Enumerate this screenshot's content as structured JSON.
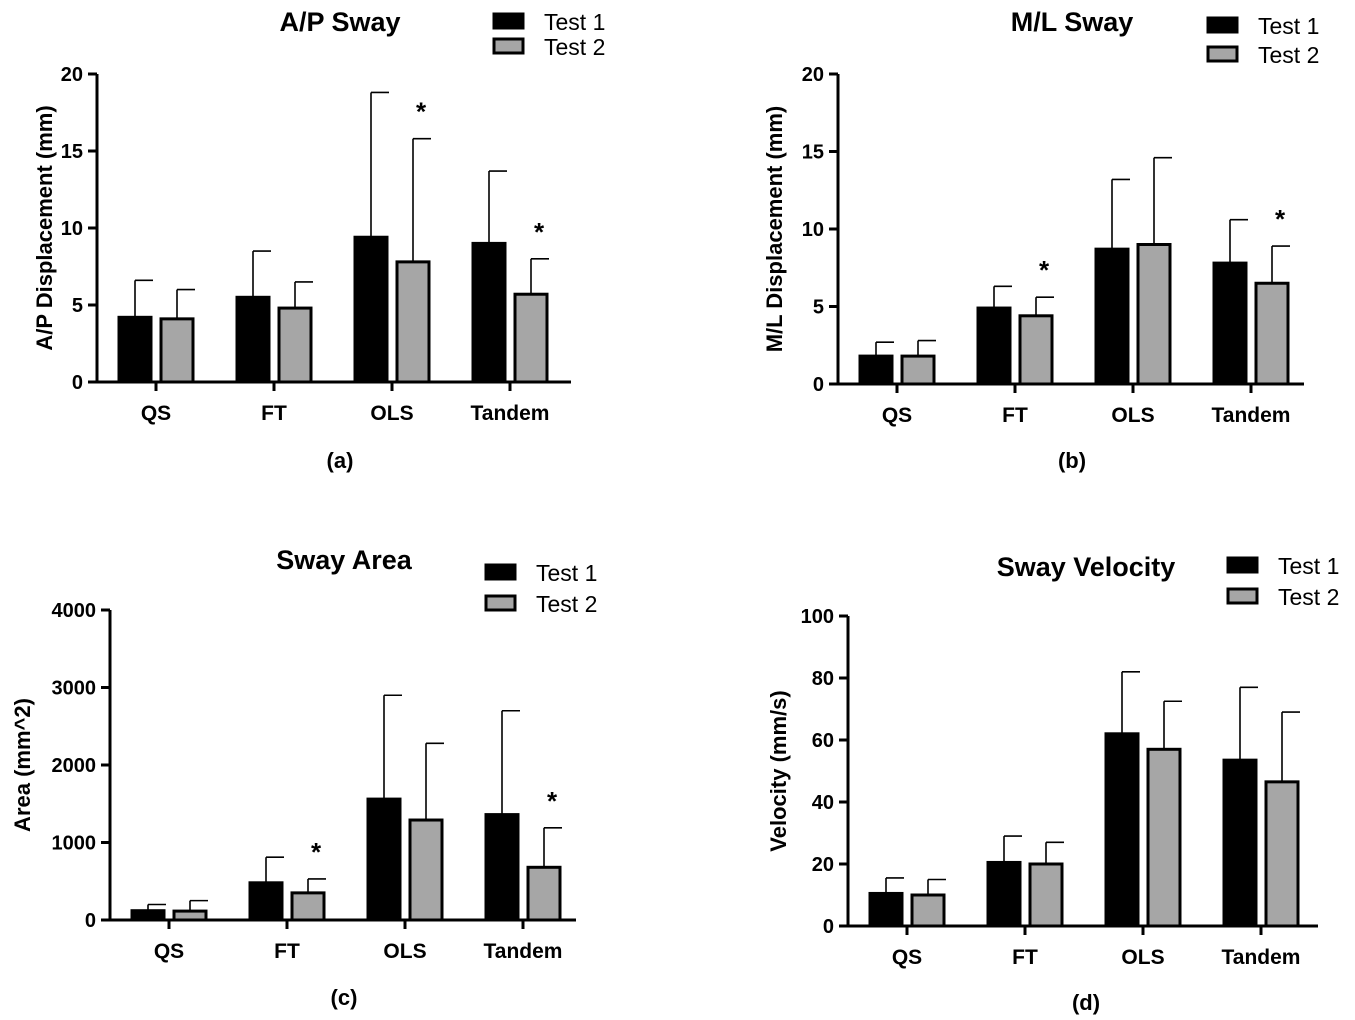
{
  "chart_data": [
    {
      "type": "bar",
      "title": "A/P Sway",
      "panel_label": "(a)",
      "ylabel": "A/P Displacement (mm)",
      "xlabel": "",
      "ylim": [
        0,
        20
      ],
      "yticks": [
        0,
        5,
        10,
        15,
        20
      ],
      "categories": [
        "QS",
        "FT",
        "OLS",
        "Tandem"
      ],
      "series": [
        {
          "name": "Test 1",
          "color": "#000000",
          "values": [
            4.2,
            5.5,
            9.4,
            9.0
          ],
          "error": [
            2.4,
            3.0,
            9.4,
            4.7
          ]
        },
        {
          "name": "Test 2",
          "color": "#a6a6a6",
          "values": [
            4.1,
            4.8,
            7.8,
            5.7
          ],
          "error": [
            1.9,
            1.7,
            8.0,
            2.3
          ]
        }
      ],
      "significance": [
        {
          "category": "OLS",
          "label": "*"
        },
        {
          "category": "Tandem",
          "label": "*"
        }
      ],
      "legend_position": "top-right"
    },
    {
      "type": "bar",
      "title": "M/L Sway",
      "panel_label": "(b)",
      "ylabel": "M/L  Displacement (mm)",
      "xlabel": "",
      "ylim": [
        0,
        20
      ],
      "yticks": [
        0,
        5,
        10,
        15,
        20
      ],
      "categories": [
        "QS",
        "FT",
        "OLS",
        "Tandem"
      ],
      "series": [
        {
          "name": "Test 1",
          "color": "#000000",
          "values": [
            1.8,
            4.9,
            8.7,
            7.8
          ],
          "error": [
            0.9,
            1.4,
            4.5,
            2.8
          ]
        },
        {
          "name": "Test 2",
          "color": "#a6a6a6",
          "values": [
            1.8,
            4.4,
            9.0,
            6.5
          ],
          "error": [
            1.0,
            1.2,
            5.6,
            2.4
          ]
        }
      ],
      "significance": [
        {
          "category": "FT",
          "label": "*"
        },
        {
          "category": "Tandem",
          "label": "*"
        }
      ],
      "legend_position": "top-right"
    },
    {
      "type": "bar",
      "title": "Sway Area",
      "panel_label": "(c)",
      "ylabel": "Area (mm^2)",
      "xlabel": "",
      "ylim": [
        0,
        4000
      ],
      "yticks": [
        0,
        1000,
        2000,
        3000,
        4000
      ],
      "categories": [
        "QS",
        "FT",
        "OLS",
        "Tandem"
      ],
      "series": [
        {
          "name": "Test 1",
          "color": "#000000",
          "values": [
            120,
            480,
            1560,
            1360
          ],
          "error": [
            80,
            330,
            1340,
            1340
          ]
        },
        {
          "name": "Test 2",
          "color": "#a6a6a6",
          "values": [
            115,
            350,
            1290,
            680
          ],
          "error": [
            135,
            180,
            990,
            510
          ]
        }
      ],
      "significance": [
        {
          "category": "FT",
          "label": "*"
        },
        {
          "category": "Tandem",
          "label": "*"
        }
      ],
      "legend_position": "top-right"
    },
    {
      "type": "bar",
      "title": "Sway Velocity",
      "panel_label": "(d)",
      "ylabel": "Velocity (mm/s)",
      "xlabel": "",
      "ylim": [
        0,
        100
      ],
      "yticks": [
        0,
        20,
        40,
        60,
        80,
        100
      ],
      "categories": [
        "QS",
        "FT",
        "OLS",
        "Tandem"
      ],
      "series": [
        {
          "name": "Test 1",
          "color": "#000000",
          "values": [
            10.5,
            20.5,
            62,
            53.5
          ],
          "error": [
            5,
            8.5,
            20,
            23.5
          ]
        },
        {
          "name": "Test 2",
          "color": "#a6a6a6",
          "values": [
            10,
            20,
            57,
            46.5
          ],
          "error": [
            5,
            7,
            15.5,
            22.5
          ]
        }
      ],
      "significance": [],
      "legend_position": "top-right"
    }
  ]
}
